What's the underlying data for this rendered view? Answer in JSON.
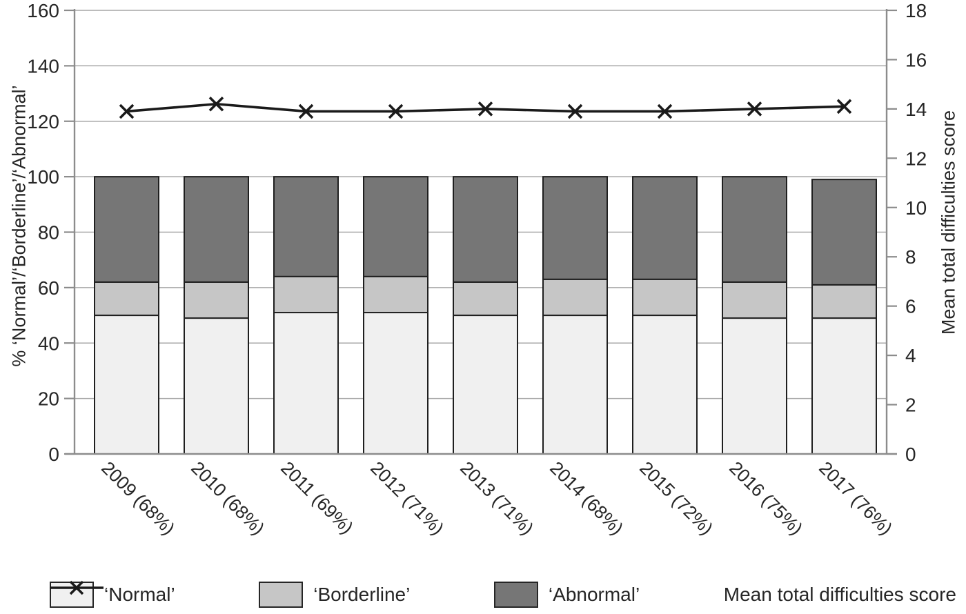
{
  "chart_data": {
    "type": "bar",
    "subtype": "stacked-bar-with-line",
    "title": "",
    "categories": [
      "2009 (68%)",
      "2010 (68%)",
      "2011 (69%)",
      "2012 (71%)",
      "2013 (71%)",
      "2014 (68%)",
      "2015 (72%)",
      "2016 (75%)",
      "2017 (76%)"
    ],
    "series": [
      {
        "name": "‘Normal’",
        "type": "bar",
        "axis": "left",
        "color": "#f0f0f0",
        "values": [
          50,
          49,
          51,
          51,
          50,
          50,
          50,
          49,
          49
        ]
      },
      {
        "name": "‘Borderline’",
        "type": "bar",
        "axis": "left",
        "color": "#c6c6c6",
        "values": [
          12,
          13,
          13,
          13,
          12,
          13,
          13,
          13,
          12
        ]
      },
      {
        "name": "‘Abnormal’",
        "type": "bar",
        "axis": "left",
        "color": "#767676",
        "values": [
          38,
          38,
          36,
          36,
          38,
          37,
          37,
          38,
          38
        ]
      },
      {
        "name": "Mean total difficulties score",
        "type": "line",
        "axis": "right",
        "color": "#1a1a1a",
        "marker": "x",
        "values": [
          13.9,
          14.2,
          13.9,
          13.9,
          14.0,
          13.9,
          13.9,
          14.0,
          14.1
        ]
      }
    ],
    "left_axis": {
      "label": "% ‘Normal’/‘Borderline’/‘Abnormal’",
      "min": 0,
      "max": 160,
      "ticks": [
        0,
        20,
        40,
        60,
        80,
        100,
        120,
        140,
        160
      ]
    },
    "right_axis": {
      "label": "Mean total difficulties score",
      "min": 0,
      "max": 18,
      "ticks": [
        0,
        2,
        4,
        6,
        8,
        10,
        12,
        14,
        16,
        18
      ]
    },
    "grid": true,
    "legend_position": "bottom",
    "bar_stack_totals": [
      100,
      100,
      100,
      100,
      100,
      100,
      100,
      100,
      99
    ]
  },
  "legend": {
    "items": [
      {
        "label": "‘Normal’",
        "swatch": "#f0f0f0",
        "marker": "box"
      },
      {
        "label": "‘Borderline’",
        "swatch": "#c6c6c6",
        "marker": "box"
      },
      {
        "label": "‘Abnormal’",
        "swatch": "#767676",
        "marker": "box"
      },
      {
        "label": "Mean total difficulties score",
        "swatch": "#1a1a1a",
        "marker": "x-line"
      }
    ]
  },
  "colors": {
    "normal_fill": "#f0f0f0",
    "borderline_fill": "#c6c6c6",
    "abnormal_fill": "#767676",
    "bar_border": "#1f1f1f",
    "line_color": "#1a1a1a",
    "grid_color": "#a6a6a6",
    "axis_color": "#8c8c8c",
    "text_color": "#262626"
  }
}
